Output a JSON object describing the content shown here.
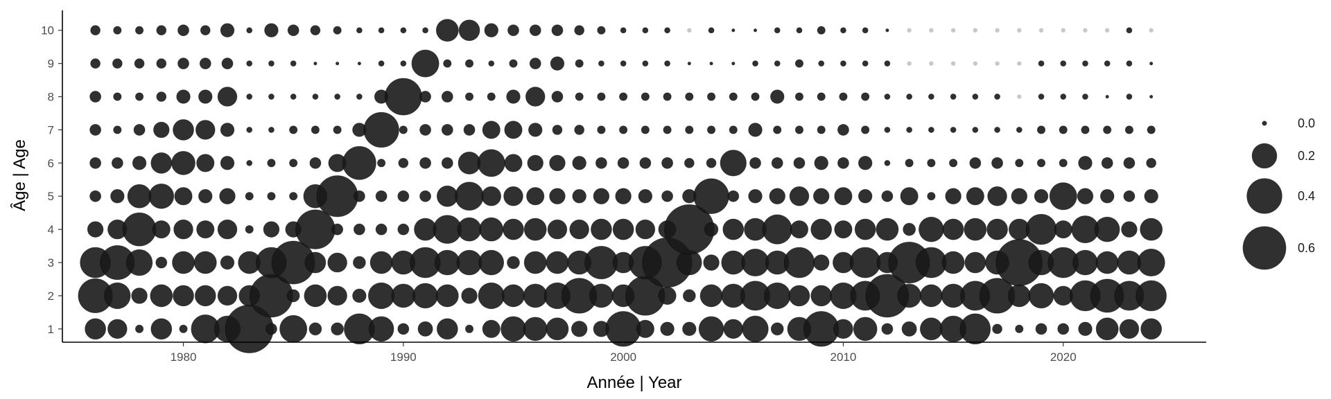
{
  "chart_data": {
    "type": "scatter",
    "subtype": "bubble",
    "xlabel": "Année | Year",
    "ylabel": "Âge | Age",
    "xlim": [
      1974.5,
      2026.5
    ],
    "ylim": [
      0.6,
      10.6
    ],
    "x_ticks": [
      1980,
      1990,
      2000,
      2010,
      2020
    ],
    "y_ticks": [
      1,
      2,
      3,
      4,
      5,
      6,
      7,
      8,
      9,
      10
    ],
    "grid": false,
    "legend_position": "right",
    "legend": {
      "values": [
        0.0,
        0.2,
        0.4,
        0.6
      ],
      "labels": [
        "0.0",
        "0.2",
        "0.4",
        "0.6"
      ]
    },
    "colors": {
      "point": "#1a1a1a",
      "zero_point": "#c8c8c8",
      "axis": "#000000",
      "tick_label": "#4d4d4d"
    },
    "years": [
      1976,
      1977,
      1978,
      1979,
      1980,
      1981,
      1982,
      1983,
      1984,
      1985,
      1986,
      1987,
      1988,
      1989,
      1990,
      1991,
      1992,
      1993,
      1994,
      1995,
      1996,
      1997,
      1998,
      1999,
      2000,
      2001,
      2002,
      2003,
      2004,
      2005,
      2006,
      2007,
      2008,
      2009,
      2010,
      2011,
      2012,
      2013,
      2014,
      2015,
      2016,
      2017,
      2018,
      2019,
      2020,
      2021,
      2022,
      2023,
      2024
    ],
    "ages": [
      1,
      2,
      3,
      4,
      5,
      6,
      7,
      8,
      9,
      10
    ],
    "values": {
      "1": [
        0.14,
        0.12,
        0.02,
        0.14,
        0.02,
        0.26,
        0.22,
        0.75,
        0.04,
        0.24,
        0.05,
        0.05,
        0.3,
        0.2,
        0.04,
        0.07,
        0.14,
        0.02,
        0.1,
        0.2,
        0.18,
        0.16,
        0.08,
        0.08,
        0.4,
        0.1,
        0.06,
        0.06,
        0.2,
        0.12,
        0.22,
        0.05,
        0.18,
        0.4,
        0.12,
        0.18,
        0.04,
        0.07,
        0.16,
        0.22,
        0.3,
        0.03,
        0.02,
        0.04,
        0.04,
        0.06,
        0.16,
        0.12,
        0.14
      ],
      "2": [
        0.38,
        0.22,
        0.08,
        0.16,
        0.14,
        0.14,
        0.12,
        0.14,
        0.6,
        0.05,
        0.16,
        0.12,
        0.06,
        0.22,
        0.18,
        0.2,
        0.16,
        0.08,
        0.22,
        0.16,
        0.18,
        0.22,
        0.4,
        0.18,
        0.16,
        0.5,
        0.1,
        0.05,
        0.16,
        0.18,
        0.28,
        0.22,
        0.14,
        0.14,
        0.22,
        0.28,
        0.6,
        0.18,
        0.16,
        0.18,
        0.28,
        0.4,
        0.16,
        0.2,
        0.12,
        0.3,
        0.36,
        0.28,
        0.3
      ],
      "3": [
        0.3,
        0.38,
        0.22,
        0.04,
        0.16,
        0.16,
        0.06,
        0.16,
        0.3,
        0.6,
        0.14,
        0.12,
        0.05,
        0.16,
        0.18,
        0.3,
        0.2,
        0.2,
        0.2,
        0.05,
        0.16,
        0.16,
        0.18,
        0.35,
        0.14,
        0.35,
        0.8,
        0.2,
        0.08,
        0.18,
        0.24,
        0.18,
        0.3,
        0.08,
        0.14,
        0.3,
        0.14,
        0.55,
        0.3,
        0.16,
        0.14,
        0.18,
        0.7,
        0.2,
        0.3,
        0.2,
        0.16,
        0.18,
        0.24
      ],
      "4": [
        0.08,
        0.12,
        0.36,
        0.1,
        0.12,
        0.1,
        0.12,
        0.02,
        0.08,
        0.08,
        0.5,
        0.04,
        0.04,
        0.04,
        0.04,
        0.16,
        0.26,
        0.18,
        0.18,
        0.14,
        0.16,
        0.12,
        0.12,
        0.14,
        0.14,
        0.12,
        0.1,
        0.8,
        0.06,
        0.14,
        0.16,
        0.28,
        0.1,
        0.14,
        0.1,
        0.14,
        0.16,
        0.05,
        0.2,
        0.14,
        0.16,
        0.14,
        0.14,
        0.3,
        0.1,
        0.24,
        0.2,
        0.08,
        0.16
      ],
      "5": [
        0.04,
        0.06,
        0.18,
        0.2,
        0.1,
        0.06,
        0.08,
        0.02,
        0.02,
        0.02,
        0.18,
        0.55,
        0.04,
        0.04,
        0.04,
        0.04,
        0.14,
        0.26,
        0.12,
        0.12,
        0.1,
        0.08,
        0.06,
        0.08,
        0.08,
        0.06,
        0.04,
        0.06,
        0.4,
        0.04,
        0.06,
        0.08,
        0.12,
        0.08,
        0.1,
        0.06,
        0.04,
        0.1,
        0.02,
        0.08,
        0.1,
        0.12,
        0.08,
        0.06,
        0.24,
        0.08,
        0.06,
        0.04,
        0.06
      ],
      "6": [
        0.04,
        0.04,
        0.06,
        0.14,
        0.18,
        0.1,
        0.06,
        0.01,
        0.02,
        0.02,
        0.04,
        0.1,
        0.36,
        0.02,
        0.03,
        0.04,
        0.04,
        0.16,
        0.24,
        0.1,
        0.08,
        0.08,
        0.06,
        0.04,
        0.04,
        0.04,
        0.04,
        0.03,
        0.03,
        0.22,
        0.04,
        0.04,
        0.04,
        0.06,
        0.04,
        0.06,
        0.01,
        0.02,
        0.02,
        0.02,
        0.04,
        0.04,
        0.02,
        0.02,
        0.02,
        0.06,
        0.04,
        0.04,
        0.03
      ],
      "7": [
        0.04,
        0.02,
        0.04,
        0.08,
        0.14,
        0.12,
        0.06,
        0.01,
        0.01,
        0.02,
        0.02,
        0.02,
        0.06,
        0.4,
        0.02,
        0.04,
        0.04,
        0.04,
        0.1,
        0.1,
        0.06,
        0.03,
        0.03,
        0.02,
        0.02,
        0.02,
        0.02,
        0.02,
        0.02,
        0.02,
        0.06,
        0.02,
        0.02,
        0.02,
        0.04,
        0.02,
        0.01,
        0.01,
        0.01,
        0.01,
        0.01,
        0.01,
        0.01,
        0.02,
        0.02,
        0.02,
        0.02,
        0.02,
        0.02
      ],
      "8": [
        0.04,
        0.02,
        0.02,
        0.03,
        0.06,
        0.06,
        0.12,
        0.01,
        0.01,
        0.01,
        0.01,
        0.01,
        0.01,
        0.06,
        0.44,
        0.04,
        0.04,
        0.02,
        0.02,
        0.06,
        0.12,
        0.04,
        0.02,
        0.02,
        0.02,
        0.02,
        0.02,
        0.02,
        0.02,
        0.02,
        0.02,
        0.06,
        0.02,
        0.02,
        0.02,
        0.02,
        0.01,
        0.01,
        0.01,
        0.01,
        0.01,
        0.01,
        0.0,
        0.01,
        0.01,
        0.01,
        0.003,
        0.01,
        0.003
      ],
      "9": [
        0.03,
        0.03,
        0.03,
        0.03,
        0.04,
        0.04,
        0.04,
        0.01,
        0.01,
        0.01,
        0.003,
        0.003,
        0.003,
        0.01,
        0.01,
        0.24,
        0.02,
        0.02,
        0.01,
        0.02,
        0.04,
        0.06,
        0.02,
        0.01,
        0.01,
        0.01,
        0.01,
        0.003,
        0.003,
        0.003,
        0.01,
        0.01,
        0.02,
        0.01,
        0.01,
        0.01,
        0.01,
        0.0,
        0.0,
        0.0,
        0.0,
        0.0,
        0.0,
        0.01,
        0.01,
        0.01,
        0.01,
        0.01,
        0.003
      ],
      "10": [
        0.03,
        0.02,
        0.02,
        0.03,
        0.04,
        0.03,
        0.06,
        0.01,
        0.06,
        0.04,
        0.03,
        0.02,
        0.01,
        0.01,
        0.01,
        0.01,
        0.16,
        0.14,
        0.06,
        0.04,
        0.04,
        0.04,
        0.03,
        0.02,
        0.01,
        0.01,
        0.01,
        0.0,
        0.01,
        0.003,
        0.003,
        0.01,
        0.01,
        0.02,
        0.01,
        0.01,
        0.003,
        0.0,
        0.0,
        0.0,
        0.0,
        0.0,
        0.0,
        0.0,
        0.0,
        0.0,
        0.0,
        0.01,
        0.0
      ]
    }
  }
}
